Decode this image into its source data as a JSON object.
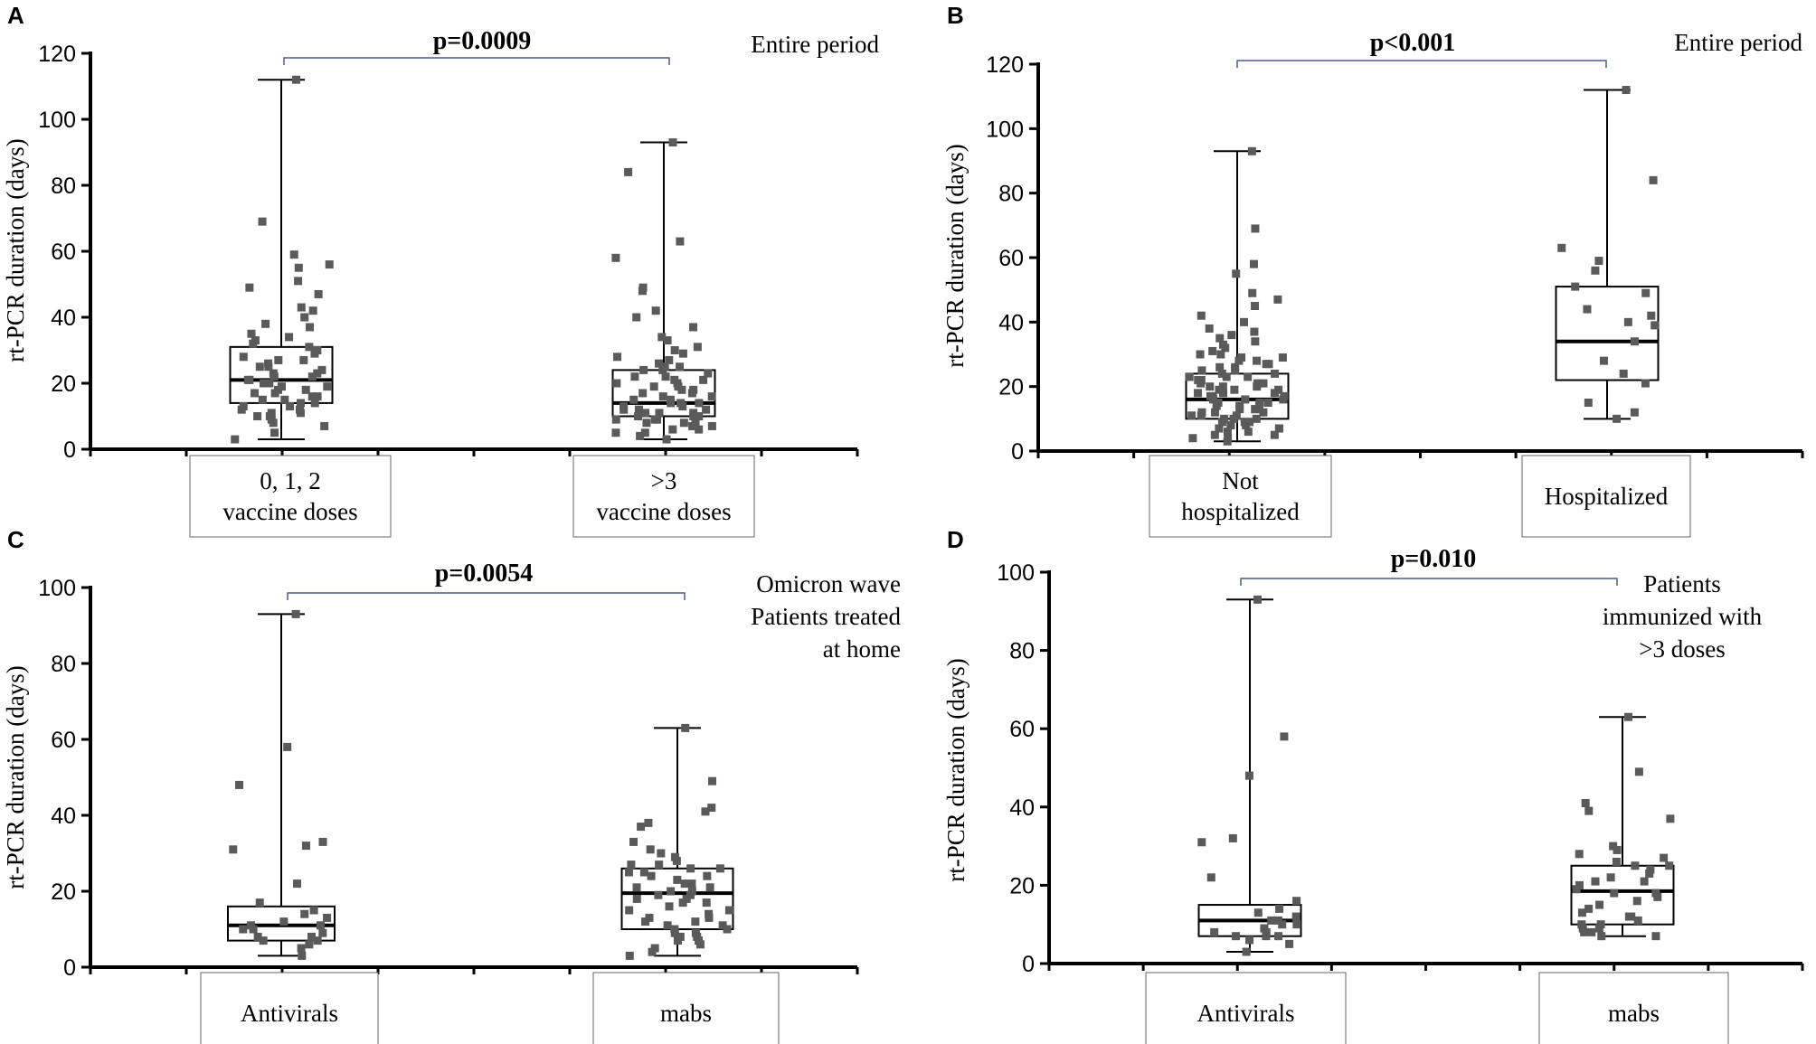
{
  "chart_data": [
    {
      "type": "box",
      "panel": "A",
      "ylabel": "rt-PCR duration (days)",
      "ylim": [
        0,
        120
      ],
      "yticks": [
        0,
        20,
        40,
        60,
        80,
        100,
        120
      ],
      "pvalue": "p=0.0009",
      "note": [
        "Entire period"
      ],
      "groups": [
        {
          "label": [
            "0, 1, 2",
            "vaccine doses"
          ],
          "min": 3,
          "q1": 14,
          "median": 21,
          "q3": 31,
          "max": 112,
          "points": [
            112,
            69,
            59,
            56,
            55,
            51,
            49,
            47,
            43,
            42,
            40,
            38,
            37,
            35,
            34,
            33,
            32,
            31,
            30,
            29,
            28,
            27,
            27,
            26,
            25,
            25,
            24,
            23,
            23,
            22,
            22,
            21,
            21,
            20,
            20,
            19,
            19,
            18,
            18,
            17,
            17,
            16,
            16,
            15,
            15,
            14,
            14,
            13,
            13,
            12,
            12,
            11,
            11,
            10,
            10,
            9,
            8,
            7,
            5,
            3
          ]
        },
        {
          "label": [
            ">3",
            "vaccine doses"
          ],
          "min": 3,
          "q1": 10,
          "median": 14,
          "q3": 24,
          "max": 93,
          "points": [
            93,
            84,
            63,
            58,
            49,
            48,
            42,
            40,
            37,
            34,
            33,
            31,
            30,
            29,
            28,
            27,
            26,
            25,
            25,
            24,
            24,
            23,
            22,
            22,
            21,
            21,
            20,
            20,
            19,
            19,
            18,
            18,
            17,
            17,
            16,
            16,
            15,
            15,
            14,
            14,
            14,
            13,
            13,
            12,
            12,
            12,
            11,
            11,
            11,
            10,
            10,
            10,
            9,
            9,
            9,
            8,
            8,
            8,
            7,
            7,
            6,
            6,
            5,
            5,
            4,
            3
          ]
        }
      ]
    },
    {
      "type": "box",
      "panel": "B",
      "ylabel": "rt-PCR duration (days)",
      "ylim": [
        0,
        120
      ],
      "yticks": [
        0,
        20,
        40,
        60,
        80,
        100,
        120
      ],
      "pvalue": "p<0.001",
      "note": [
        "Entire period"
      ],
      "groups": [
        {
          "label": [
            "Not",
            "hospitalized"
          ],
          "min": 3,
          "q1": 10,
          "median": 16,
          "q3": 24,
          "max": 93,
          "points": [
            93,
            69,
            58,
            55,
            49,
            47,
            45,
            42,
            40,
            38,
            37,
            36,
            35,
            34,
            33,
            32,
            31,
            30,
            30,
            29,
            29,
            28,
            28,
            27,
            27,
            26,
            26,
            25,
            25,
            24,
            24,
            23,
            23,
            23,
            22,
            22,
            22,
            21,
            21,
            21,
            20,
            20,
            20,
            19,
            19,
            19,
            18,
            18,
            18,
            17,
            17,
            17,
            16,
            16,
            16,
            15,
            15,
            15,
            14,
            14,
            14,
            13,
            13,
            13,
            12,
            12,
            12,
            11,
            11,
            11,
            10,
            10,
            10,
            9,
            9,
            9,
            8,
            8,
            8,
            7,
            7,
            7,
            6,
            6,
            5,
            5,
            4,
            4,
            3
          ]
        },
        {
          "label": [
            "Hospitalized"
          ],
          "min": 10,
          "q1": 22,
          "median": 34,
          "q3": 51,
          "max": 112,
          "points": [
            112,
            84,
            63,
            59,
            56,
            51,
            49,
            44,
            42,
            40,
            39,
            34,
            28,
            24,
            21,
            15,
            12,
            10
          ]
        }
      ]
    },
    {
      "type": "box",
      "panel": "C",
      "ylabel": "rt-PCR duration (days)",
      "ylim": [
        0,
        100
      ],
      "yticks": [
        0,
        20,
        40,
        60,
        80,
        100
      ],
      "pvalue": "p=0.0054",
      "note": [
        "Omicron wave",
        "Patients treated",
        "at home"
      ],
      "groups": [
        {
          "label": [
            "Antivirals"
          ],
          "min": 3,
          "q1": 7,
          "median": 11,
          "q3": 16,
          "max": 93,
          "points": [
            93,
            58,
            48,
            33,
            32,
            31,
            22,
            17,
            15,
            14,
            13,
            12,
            11,
            11,
            10,
            10,
            9,
            8,
            8,
            7,
            7,
            6,
            5,
            3
          ]
        },
        {
          "label": [
            "mabs"
          ],
          "min": 3,
          "q1": 10,
          "median": 19.5,
          "q3": 26,
          "max": 63,
          "points": [
            63,
            49,
            42,
            41,
            38,
            37,
            33,
            31,
            30,
            29,
            28,
            27,
            27,
            26,
            26,
            25,
            25,
            24,
            24,
            23,
            22,
            22,
            21,
            21,
            20,
            20,
            19,
            19,
            18,
            18,
            17,
            17,
            16,
            15,
            15,
            14,
            13,
            13,
            12,
            12,
            11,
            11,
            10,
            10,
            9,
            9,
            8,
            8,
            7,
            7,
            6,
            5,
            4,
            3
          ]
        }
      ]
    },
    {
      "type": "box",
      "panel": "D",
      "ylabel": "rt-PCR duration (days)",
      "ylim": [
        0,
        100
      ],
      "yticks": [
        0,
        20,
        40,
        60,
        80,
        100
      ],
      "pvalue": "p=0.010",
      "note": [
        "Patients",
        "immunized with",
        ">3 doses"
      ],
      "groups": [
        {
          "label": [
            "Antivirals"
          ],
          "min": 3,
          "q1": 7,
          "median": 11,
          "q3": 15,
          "max": 93,
          "points": [
            93,
            58,
            48,
            32,
            31,
            22,
            16,
            14,
            13,
            12,
            11,
            11,
            10,
            10,
            9,
            8,
            8,
            7,
            7,
            7,
            6,
            5,
            3
          ]
        },
        {
          "label": [
            "mabs"
          ],
          "min": 7,
          "q1": 10,
          "median": 18.5,
          "q3": 25,
          "max": 63,
          "points": [
            63,
            49,
            41,
            39,
            37,
            30,
            29,
            28,
            27,
            26,
            25,
            25,
            24,
            23,
            22,
            21,
            21,
            20,
            19,
            18,
            18,
            17,
            16,
            15,
            14,
            13,
            12,
            12,
            11,
            10,
            10,
            9,
            9,
            8,
            8,
            7,
            7
          ]
        }
      ]
    }
  ]
}
